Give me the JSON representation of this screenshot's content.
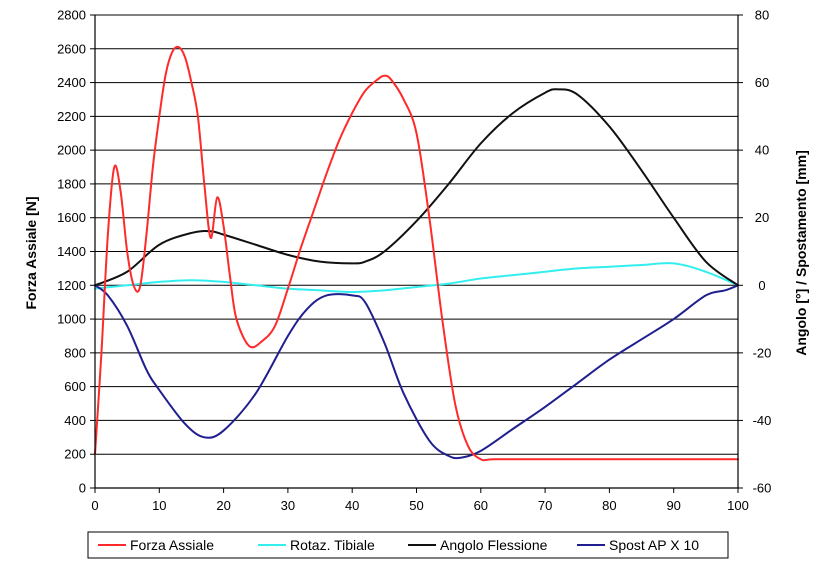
{
  "chart_data": {
    "type": "line",
    "title": "",
    "xlabel": "",
    "ylabel": "Forza Assiale [N]",
    "y2label": "Angolo [°] / Spostamento [mm]",
    "xlim": [
      0,
      100
    ],
    "ylim": [
      0,
      2800
    ],
    "y2lim": [
      -60,
      80
    ],
    "x_ticks": [
      0,
      10,
      20,
      30,
      40,
      50,
      60,
      70,
      80,
      90,
      100
    ],
    "y_ticks": [
      0,
      200,
      400,
      600,
      800,
      1000,
      1200,
      1400,
      1600,
      1800,
      2000,
      2200,
      2400,
      2600,
      2800
    ],
    "y2_ticks": [
      -60,
      -40,
      -20,
      0,
      20,
      40,
      60,
      80
    ],
    "grid": "horizontal",
    "legend_position": "bottom",
    "series": [
      {
        "name": "Forza Assiale",
        "axis": "left",
        "color": "#ff2a2a",
        "x": [
          0,
          1,
          2,
          3,
          4,
          5,
          6,
          7,
          8,
          9,
          10,
          11,
          12,
          13,
          14,
          15,
          16,
          17,
          18,
          19,
          20,
          21,
          22,
          24,
          26,
          28,
          30,
          32,
          34,
          36,
          38,
          40,
          42,
          44,
          45,
          46,
          48,
          50,
          52,
          54,
          56,
          58,
          60,
          62,
          70,
          80,
          90,
          100
        ],
        "y": [
          200,
          800,
          1500,
          1900,
          1750,
          1400,
          1200,
          1190,
          1500,
          1900,
          2200,
          2450,
          2580,
          2610,
          2550,
          2400,
          2200,
          1800,
          1480,
          1720,
          1550,
          1250,
          1000,
          840,
          870,
          960,
          1180,
          1420,
          1640,
          1860,
          2060,
          2220,
          2350,
          2420,
          2440,
          2420,
          2300,
          2100,
          1600,
          1000,
          500,
          250,
          170,
          170,
          170,
          170,
          170,
          170
        ]
      },
      {
        "name": "Rotaz. Tibiale",
        "axis": "right",
        "color": "#33eeee",
        "x": [
          0,
          5,
          10,
          15,
          20,
          25,
          30,
          35,
          40,
          45,
          50,
          55,
          60,
          65,
          70,
          75,
          80,
          85,
          90,
          95,
          100
        ],
        "y": [
          -1,
          0,
          1,
          1.5,
          1,
          0,
          -1,
          -1.5,
          -2,
          -1.5,
          -0.5,
          0.5,
          2,
          3,
          4,
          5,
          5.5,
          6,
          6.5,
          4,
          0
        ]
      },
      {
        "name": "Angolo Flessione",
        "axis": "right",
        "color": "#111111",
        "x": [
          0,
          5,
          10,
          15,
          18,
          20,
          25,
          30,
          35,
          40,
          42,
          45,
          50,
          55,
          60,
          65,
          70,
          72,
          75,
          80,
          85,
          90,
          95,
          100
        ],
        "y": [
          0,
          4,
          12,
          15.5,
          16,
          15,
          12,
          9,
          7,
          6.5,
          7,
          10,
          19,
          30,
          42,
          51,
          57,
          58,
          56.5,
          47,
          34,
          20,
          7,
          0
        ]
      },
      {
        "name": "Spost AP X 10",
        "axis": "right",
        "color": "#1f1f8f",
        "x": [
          0,
          2,
          5,
          8,
          10,
          14,
          17,
          20,
          25,
          30,
          33,
          36,
          40,
          42,
          45,
          48,
          52,
          55,
          57,
          60,
          65,
          70,
          75,
          80,
          85,
          90,
          95,
          98,
          100
        ],
        "y": [
          0,
          -3,
          -12,
          -25,
          -31,
          -41,
          -45,
          -43,
          -32,
          -15,
          -7,
          -3,
          -3,
          -5,
          -17,
          -32,
          -46,
          -50.5,
          -51,
          -49,
          -42.5,
          -36,
          -29,
          -22,
          -16,
          -10,
          -3,
          -1.5,
          0
        ]
      }
    ]
  }
}
